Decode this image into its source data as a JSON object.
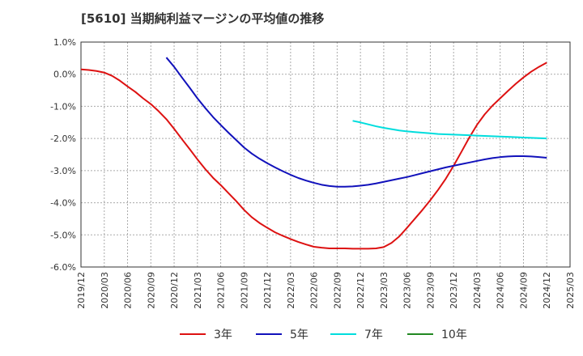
{
  "chart_data": {
    "type": "line",
    "title": "[5610]  当期純利益マージンの平均値の推移",
    "xlabel": "",
    "ylabel": "",
    "ylim": [
      -6.0,
      1.0
    ],
    "y_ticks": [
      1.0,
      0.0,
      -1.0,
      -2.0,
      -3.0,
      -4.0,
      -5.0,
      -6.0
    ],
    "y_tick_labels": [
      "1.0%",
      "0.0%",
      "-1.0%",
      "-2.0%",
      "-3.0%",
      "-4.0%",
      "-5.0%",
      "-6.0%"
    ],
    "x_tick_labels": [
      "2019/12",
      "2020/03",
      "2020/06",
      "2020/09",
      "2020/12",
      "2021/03",
      "2021/06",
      "2021/09",
      "2021/12",
      "2022/03",
      "2022/06",
      "2022/09",
      "2022/12",
      "2023/03",
      "2023/06",
      "2023/09",
      "2023/12",
      "2024/03",
      "2024/06",
      "2024/09",
      "2024/12",
      "2025/03"
    ],
    "grid": true,
    "legend_position": "bottom",
    "series": [
      {
        "name": "3年",
        "color": "#dd1111",
        "x": [
          "2019/12",
          "2020/01",
          "2020/02",
          "2020/03",
          "2020/04",
          "2020/05",
          "2020/06",
          "2020/07",
          "2020/08",
          "2020/09",
          "2020/10",
          "2020/11",
          "2020/12",
          "2021/01",
          "2021/02",
          "2021/03",
          "2021/04",
          "2021/05",
          "2021/06",
          "2021/07",
          "2021/08",
          "2021/09",
          "2021/10",
          "2021/11",
          "2021/12",
          "2022/01",
          "2022/02",
          "2022/03",
          "2022/04",
          "2022/05",
          "2022/06",
          "2022/07",
          "2022/08",
          "2022/09",
          "2022/10",
          "2022/11",
          "2022/12",
          "2023/01",
          "2023/02",
          "2023/03",
          "2023/04",
          "2023/05",
          "2023/06",
          "2023/07",
          "2023/08",
          "2023/09",
          "2023/10",
          "2023/11",
          "2023/12",
          "2024/01",
          "2024/02",
          "2024/03",
          "2024/04",
          "2024/05",
          "2024/06",
          "2024/07",
          "2024/08",
          "2024/09",
          "2024/10",
          "2024/11",
          "2024/12"
        ],
        "values": [
          0.15,
          0.13,
          0.1,
          0.05,
          -0.05,
          -0.2,
          -0.38,
          -0.55,
          -0.75,
          -0.93,
          -1.15,
          -1.4,
          -1.7,
          -2.02,
          -2.33,
          -2.65,
          -2.95,
          -3.22,
          -3.45,
          -3.7,
          -3.95,
          -4.22,
          -4.45,
          -4.63,
          -4.78,
          -4.92,
          -5.03,
          -5.13,
          -5.22,
          -5.3,
          -5.37,
          -5.4,
          -5.42,
          -5.42,
          -5.42,
          -5.43,
          -5.43,
          -5.43,
          -5.42,
          -5.38,
          -5.25,
          -5.05,
          -4.78,
          -4.5,
          -4.22,
          -3.92,
          -3.6,
          -3.25,
          -2.85,
          -2.42,
          -1.98,
          -1.58,
          -1.25,
          -0.98,
          -0.75,
          -0.52,
          -0.3,
          -0.1,
          0.08,
          0.23,
          0.36
        ]
      },
      {
        "name": "5年",
        "color": "#1111bb",
        "x": [
          "2020/11",
          "2020/12",
          "2021/01",
          "2021/02",
          "2021/03",
          "2021/04",
          "2021/05",
          "2021/06",
          "2021/07",
          "2021/08",
          "2021/09",
          "2021/10",
          "2021/11",
          "2021/12",
          "2022/01",
          "2022/02",
          "2022/03",
          "2022/04",
          "2022/05",
          "2022/06",
          "2022/07",
          "2022/08",
          "2022/09",
          "2022/10",
          "2022/11",
          "2022/12",
          "2023/01",
          "2023/02",
          "2023/03",
          "2023/04",
          "2023/05",
          "2023/06",
          "2023/07",
          "2023/08",
          "2023/09",
          "2023/10",
          "2023/11",
          "2023/12",
          "2024/01",
          "2024/02",
          "2024/03",
          "2024/04",
          "2024/05",
          "2024/06",
          "2024/07",
          "2024/08",
          "2024/09",
          "2024/10",
          "2024/11",
          "2024/12"
        ],
        "values": [
          0.52,
          0.23,
          -0.1,
          -0.42,
          -0.75,
          -1.05,
          -1.33,
          -1.58,
          -1.82,
          -2.05,
          -2.28,
          -2.47,
          -2.63,
          -2.77,
          -2.9,
          -3.02,
          -3.13,
          -3.23,
          -3.31,
          -3.38,
          -3.44,
          -3.48,
          -3.5,
          -3.5,
          -3.49,
          -3.47,
          -3.44,
          -3.4,
          -3.35,
          -3.3,
          -3.25,
          -3.2,
          -3.14,
          -3.08,
          -3.02,
          -2.96,
          -2.9,
          -2.85,
          -2.8,
          -2.75,
          -2.7,
          -2.65,
          -2.61,
          -2.58,
          -2.56,
          -2.55,
          -2.55,
          -2.56,
          -2.58,
          -2.6
        ]
      },
      {
        "name": "7年",
        "color": "#00dddd",
        "x": [
          "2022/11",
          "2022/12",
          "2023/01",
          "2023/02",
          "2023/03",
          "2023/04",
          "2023/05",
          "2023/06",
          "2023/07",
          "2023/08",
          "2023/09",
          "2023/10",
          "2023/11",
          "2023/12",
          "2024/01",
          "2024/02",
          "2024/03",
          "2024/04",
          "2024/05",
          "2024/06",
          "2024/07",
          "2024/08",
          "2024/09",
          "2024/10",
          "2024/11",
          "2024/12"
        ],
        "values": [
          -1.45,
          -1.5,
          -1.56,
          -1.62,
          -1.67,
          -1.71,
          -1.75,
          -1.78,
          -1.8,
          -1.82,
          -1.84,
          -1.86,
          -1.87,
          -1.88,
          -1.89,
          -1.9,
          -1.91,
          -1.92,
          -1.93,
          -1.94,
          -1.95,
          -1.96,
          -1.97,
          -1.98,
          -1.99,
          -2.0
        ]
      },
      {
        "name": "10年",
        "color": "#228822",
        "x": [],
        "values": []
      }
    ]
  }
}
